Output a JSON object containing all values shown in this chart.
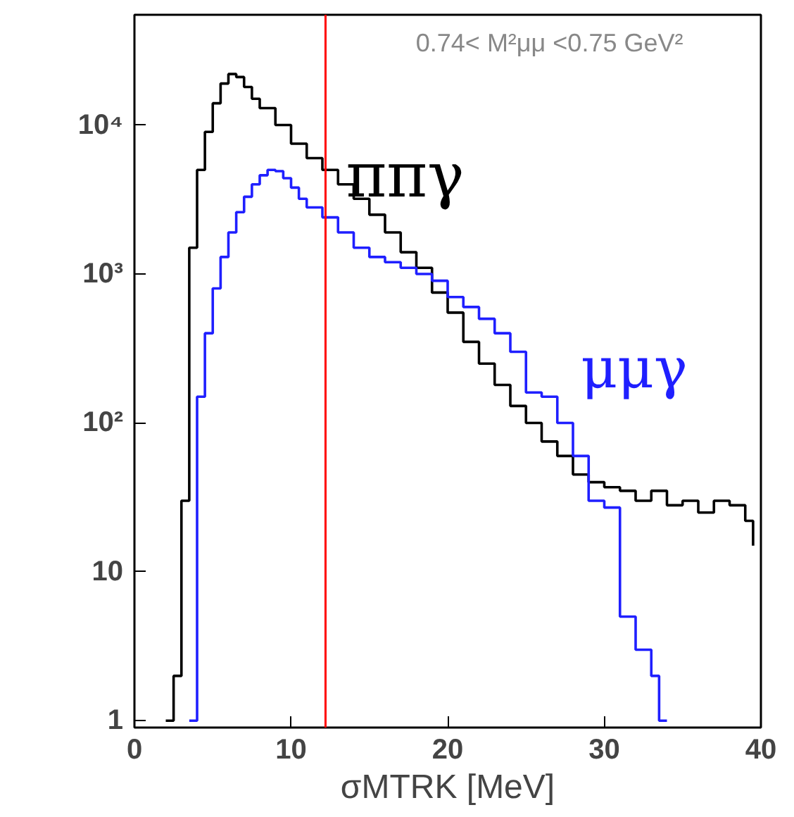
{
  "chart_data": {
    "type": "step",
    "xlabel": "σMTRK [MeV]",
    "xlim": [
      0,
      40
    ],
    "xticks": [
      0,
      10,
      20,
      30,
      40
    ],
    "ylim": [
      0.9,
      55000
    ],
    "log": true,
    "grid": false,
    "legend": false,
    "yticks": [
      1,
      10,
      {
        "value": 100,
        "label": "10²"
      },
      {
        "value": 1000,
        "label": "10³"
      },
      {
        "value": 10000,
        "label": "10⁴"
      }
    ],
    "series": [
      {
        "name": "ππγ",
        "color": "#000000",
        "x": [
          2,
          2.5,
          3,
          3.5,
          4,
          4.5,
          5,
          5.5,
          6,
          6.5,
          7,
          7.5,
          8,
          9,
          10,
          11,
          12,
          13,
          14,
          15,
          16,
          17,
          18,
          19,
          20,
          21,
          22,
          23,
          24,
          25,
          26,
          27,
          28,
          29,
          30,
          31,
          32,
          33,
          34,
          35,
          36,
          37,
          38,
          39,
          39.5
        ],
        "values": [
          1,
          2,
          30,
          1500,
          5000,
          9000,
          14000,
          19000,
          22000,
          21000,
          18000,
          15000,
          13000,
          10000,
          7500,
          6000,
          5000,
          4000,
          3200,
          2500,
          1900,
          1400,
          1100,
          750,
          550,
          350,
          250,
          180,
          130,
          100,
          75,
          60,
          45,
          40,
          37,
          35,
          30,
          35,
          28,
          30,
          25,
          30,
          28,
          22,
          15
        ]
      },
      {
        "name": "μμγ",
        "color": "#1f1fff",
        "x": [
          3.5,
          4,
          4.5,
          5,
          5.5,
          6,
          6.5,
          7,
          7.5,
          8,
          8.5,
          9,
          9.5,
          10,
          10.5,
          11,
          12,
          13,
          14,
          15,
          16,
          17,
          18,
          19,
          20,
          21,
          22,
          23,
          24,
          25,
          26,
          27,
          28,
          29,
          30,
          31,
          32,
          33,
          33.5,
          34
        ],
        "values": [
          1,
          150,
          400,
          800,
          1300,
          1900,
          2600,
          3300,
          4000,
          4600,
          5000,
          4900,
          4400,
          3800,
          3200,
          2800,
          2400,
          1900,
          1500,
          1300,
          1200,
          1100,
          1000,
          900,
          700,
          600,
          500,
          400,
          300,
          160,
          150,
          100,
          60,
          30,
          27,
          5,
          3,
          2,
          1,
          1
        ]
      }
    ],
    "ref_lines": [
      {
        "axis": "x",
        "value": 12.2,
        "color": "#ff0000"
      }
    ],
    "annotations": [
      "0.74< M²μμ <0.75 GeV²"
    ]
  }
}
